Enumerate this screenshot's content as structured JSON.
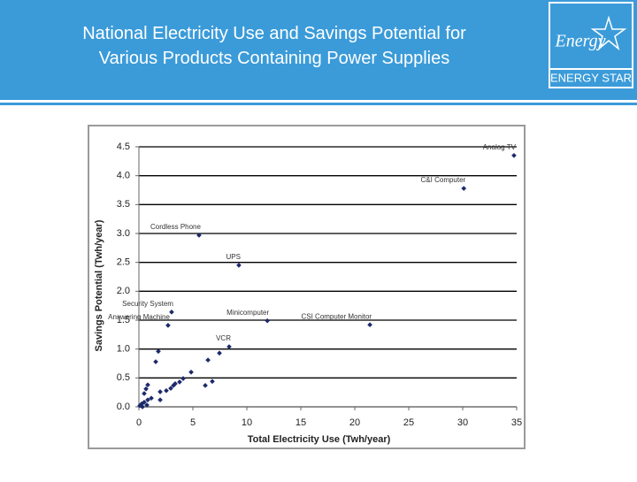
{
  "header": {
    "title": "National Electricity Use and Savings Potential for Various Products Containing Power Supplies"
  },
  "logo": {
    "script": "Energy",
    "text": "ENERGY STAR"
  },
  "chart_data": {
    "type": "scatter",
    "x_label": "Total Electricity Use (Twh/year)",
    "y_label": "Savings Potential (Twh/year)",
    "xlim": [
      0,
      35
    ],
    "xticks": [
      0,
      5,
      10,
      15,
      20,
      25,
      30,
      35
    ],
    "ylim": [
      0,
      4.5
    ],
    "yticks": [
      {
        "value": 0,
        "label": "0.0"
      },
      0.5,
      {
        "value": 1,
        "label": "1.0"
      },
      1.5,
      {
        "value": 2,
        "label": "2.0"
      },
      2.5,
      {
        "value": 3,
        "label": "3.0"
      },
      3.5,
      {
        "value": 4,
        "label": "4.0"
      },
      4.5
    ],
    "grid": true,
    "series": [
      {
        "color": "#1c2a6b",
        "x": [
          34.75,
          30.1,
          5.57,
          9.26,
          3.03,
          11.9,
          21.4,
          2.7,
          8.36,
          7.46,
          6.4,
          6.8,
          6.15,
          4.84,
          4.1,
          3.77,
          3.36,
          3.2,
          2.95,
          2.54,
          1.97,
          1.97,
          1.8,
          1.56,
          0.82,
          0.66,
          0.49,
          1.15,
          0.82,
          0.49,
          0.25,
          0.08,
          0.33,
          0.74
        ],
        "values": [
          4.35,
          3.78,
          2.97,
          2.45,
          1.64,
          1.49,
          1.42,
          1.41,
          1.04,
          0.93,
          0.81,
          0.44,
          0.37,
          0.6,
          0.49,
          0.43,
          0.4,
          0.37,
          0.32,
          0.28,
          0.26,
          0.12,
          0.96,
          0.78,
          0.38,
          0.31,
          0.23,
          0.15,
          0.12,
          0.08,
          0.05,
          0.02,
          0.0,
          0.03
        ],
        "labels": [
          "Analog TV",
          "C&I Computer",
          "Cordless Phone",
          "UPS",
          "Security System",
          "Minicomputer",
          "CSI Computer Monitor",
          "Answering Machine",
          "VCR",
          null,
          null,
          null,
          null,
          null,
          null,
          null,
          null,
          null,
          null,
          null,
          null,
          null,
          null,
          null,
          null,
          null,
          null,
          null,
          null,
          null,
          null,
          null,
          null,
          null
        ]
      }
    ]
  }
}
